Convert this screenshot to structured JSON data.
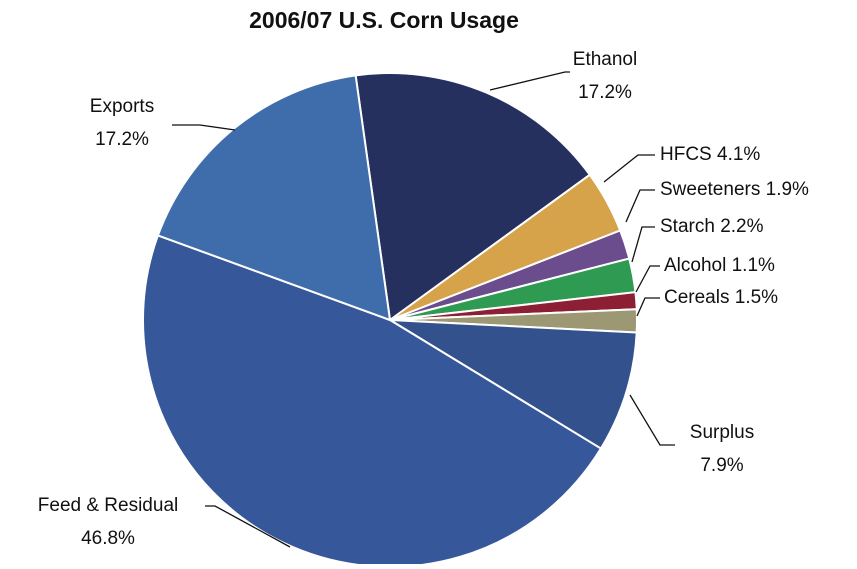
{
  "chart_data": {
    "type": "pie",
    "title": "2006/07 U.S. Corn Usage",
    "categories": [
      "Ethanol",
      "HFCS",
      "Sweeteners",
      "Starch",
      "Alcohol",
      "Cereals",
      "Surplus",
      "Feed & Residual",
      "Exports"
    ],
    "values": [
      17.2,
      4.1,
      1.9,
      2.2,
      1.1,
      1.5,
      7.9,
      46.8,
      17.2
    ],
    "value_labels": [
      "17.2%",
      "4.1%",
      "1.9%",
      "2.2%",
      "1.1%",
      "1.5%",
      "7.9%",
      "46.8%",
      "17.2%"
    ],
    "colors": [
      "#25305f",
      "#d6a24a",
      "#6b4c8c",
      "#2e9a52",
      "#8c1f33",
      "#9c9873",
      "#33518c",
      "#36579a",
      "#3f6cab"
    ]
  }
}
